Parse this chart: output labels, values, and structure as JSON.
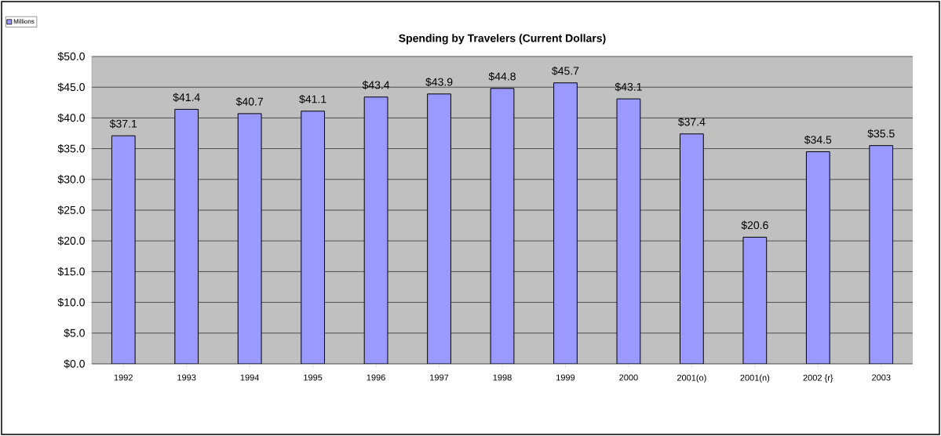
{
  "chart_data": {
    "type": "bar",
    "title": "Spending by Travelers (Current Dollars)",
    "categories": [
      "1992",
      "1993",
      "1994",
      "1995",
      "1996",
      "1997",
      "1998",
      "1999",
      "2000",
      "2001(o)",
      "2001(n)",
      "2002 {r}",
      "2003"
    ],
    "series": [
      {
        "name": "Millions",
        "color": "#9999ff",
        "values": [
          37.1,
          41.4,
          40.7,
          41.1,
          43.4,
          43.9,
          44.8,
          45.7,
          43.1,
          37.4,
          20.6,
          34.5,
          35.5
        ],
        "value_labels": [
          "$37.1",
          "$41.4",
          "$40.7",
          "$41.1",
          "$43.4",
          "$43.9",
          "$44.8",
          "$45.7",
          "$43.1",
          "$37.4",
          "$20.6",
          "$34.5",
          "$35.5"
        ]
      }
    ],
    "ylim": [
      0,
      50
    ],
    "yticks": [
      {
        "value": 0,
        "label": "$0.0"
      },
      {
        "value": 5,
        "label": "$5.0"
      },
      {
        "value": 10,
        "label": "$10.0"
      },
      {
        "value": 15,
        "label": "$15.0"
      },
      {
        "value": 20,
        "label": "$20.0"
      },
      {
        "value": 25,
        "label": "$25.0"
      },
      {
        "value": 30,
        "label": "$30.0"
      },
      {
        "value": 35,
        "label": "$35.0"
      },
      {
        "value": 40,
        "label": "$40.0"
      },
      {
        "value": 45,
        "label": "$45.0"
      },
      {
        "value": 50,
        "label": "$50.0"
      }
    ],
    "grid": "y",
    "legend": "top left"
  }
}
